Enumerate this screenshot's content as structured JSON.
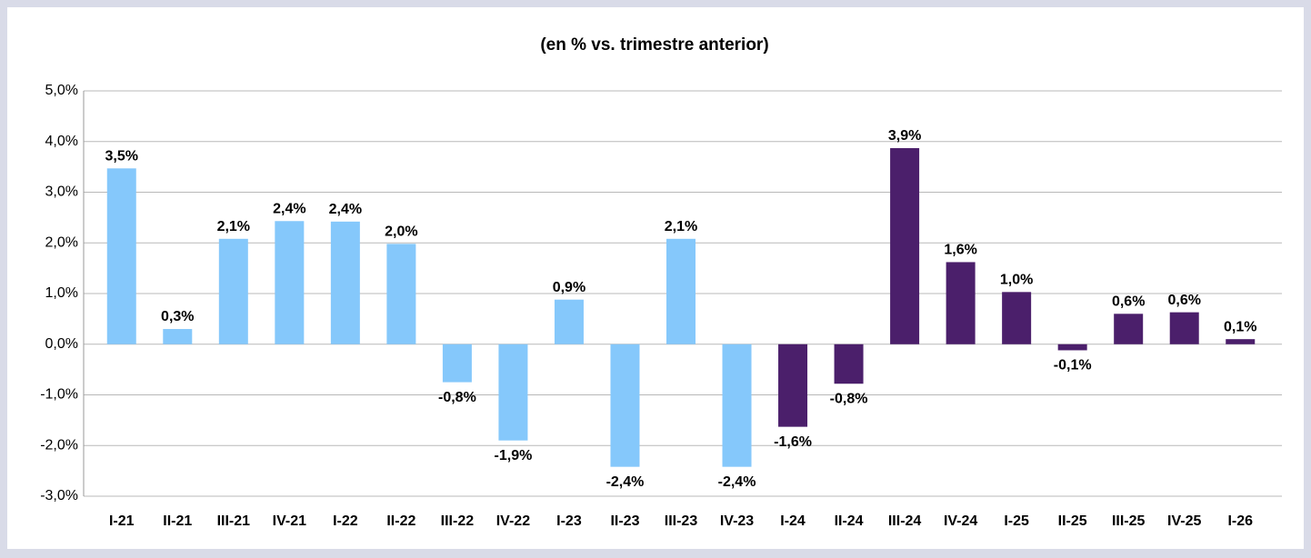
{
  "chart_data": {
    "type": "bar",
    "title": "(en % vs. trimestre anterior)",
    "categories": [
      "I-21",
      "II-21",
      "III-21",
      "IV-21",
      "I-22",
      "II-22",
      "III-22",
      "IV-22",
      "I-23",
      "II-23",
      "III-23",
      "IV-23",
      "I-24",
      "II-24",
      "III-24",
      "IV-24",
      "I-25",
      "II-25",
      "III-25",
      "IV-25",
      "I-26"
    ],
    "values": [
      3.47,
      0.3,
      2.08,
      2.43,
      2.42,
      1.98,
      -0.75,
      -1.9,
      0.88,
      -2.42,
      2.08,
      -2.42,
      -1.63,
      -0.78,
      3.87,
      1.62,
      1.03,
      -0.12,
      0.6,
      0.63,
      0.1
    ],
    "value_labels": [
      "3,5%",
      "0,3%",
      "2,1%",
      "2,4%",
      "2,4%",
      "2,0%",
      "-0,8%",
      "-1,9%",
      "0,9%",
      "-2,4%",
      "2,1%",
      "-2,4%",
      "-1,6%",
      "-0,8%",
      "3,9%",
      "1,6%",
      "1,0%",
      "-0,1%",
      "0,6%",
      "0,6%",
      "0,1%"
    ],
    "colors": [
      "#85c8fb",
      "#85c8fb",
      "#85c8fb",
      "#85c8fb",
      "#85c8fb",
      "#85c8fb",
      "#85c8fb",
      "#85c8fb",
      "#85c8fb",
      "#85c8fb",
      "#85c8fb",
      "#85c8fb",
      "#4b1f6b",
      "#4b1f6b",
      "#4b1f6b",
      "#4b1f6b",
      "#4b1f6b",
      "#4b1f6b",
      "#4b1f6b",
      "#4b1f6b",
      "#4b1f6b"
    ],
    "ylim": [
      -3,
      5
    ],
    "yticks": [
      {
        "value": -3,
        "label": "-3,0%"
      },
      {
        "value": -2,
        "label": "-2,0%"
      },
      {
        "value": -1,
        "label": "-1,0%"
      },
      {
        "value": 0,
        "label": "0,0%"
      },
      {
        "value": 1,
        "label": "1,0%"
      },
      {
        "value": 2,
        "label": "2,0%"
      },
      {
        "value": 3,
        "label": "3,0%"
      },
      {
        "value": 4,
        "label": "4,0%"
      },
      {
        "value": 5,
        "label": "5,0%"
      }
    ],
    "grid": true
  }
}
